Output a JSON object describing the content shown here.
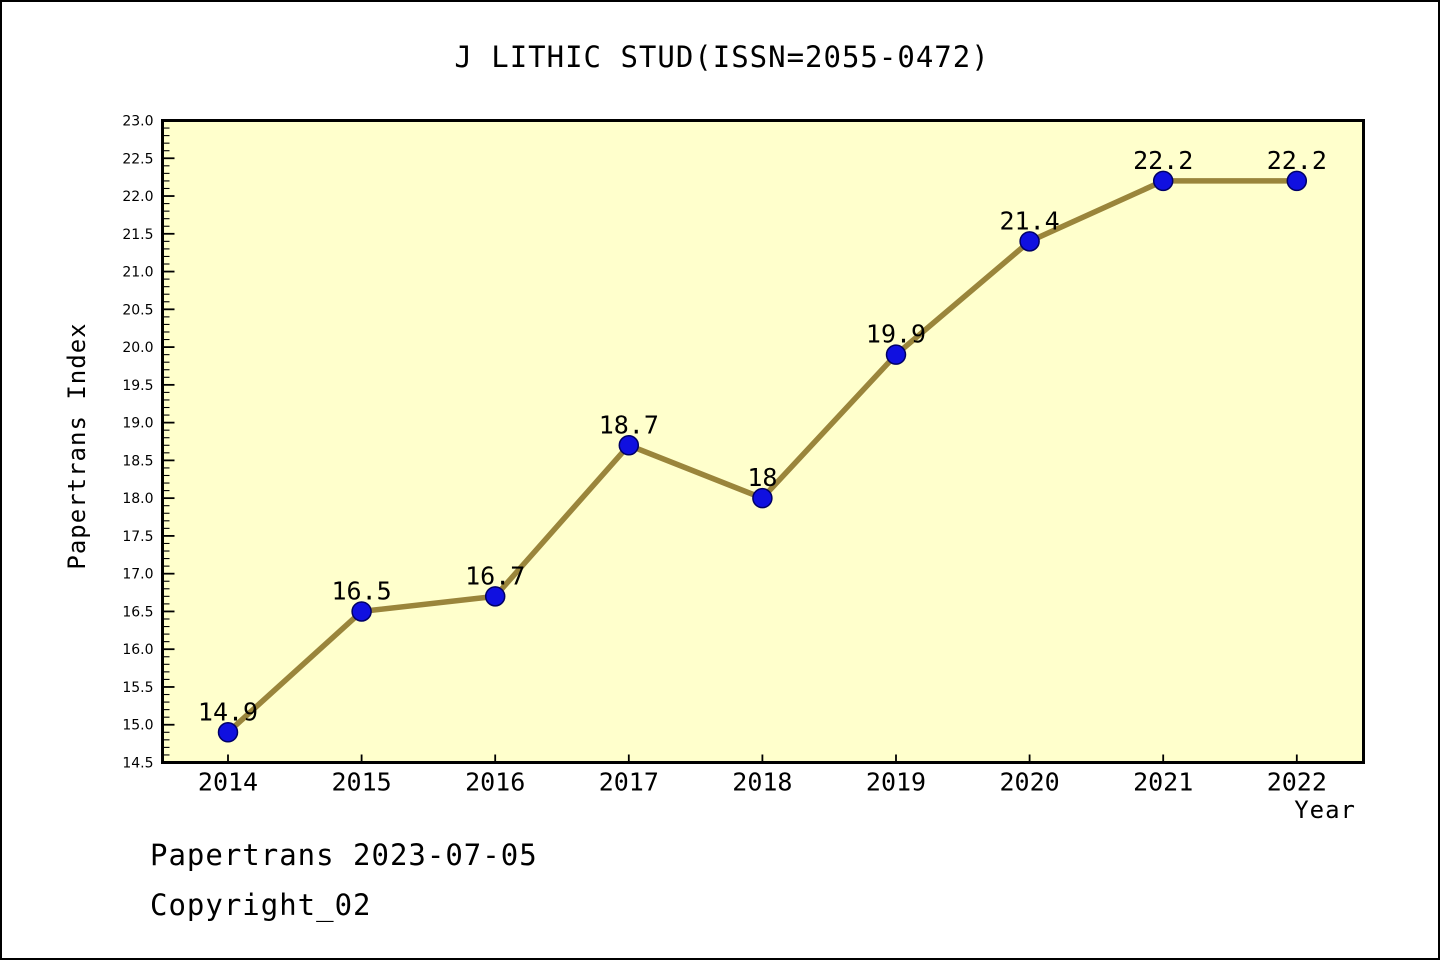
{
  "chart_data": {
    "type": "line",
    "title": "J LITHIC STUD(ISSN=2055-0472)",
    "xlabel": "Year",
    "ylabel": "Papertrans Index",
    "categories": [
      "2014",
      "2015",
      "2016",
      "2017",
      "2018",
      "2019",
      "2020",
      "2021",
      "2022"
    ],
    "values": [
      14.9,
      16.5,
      16.7,
      18.7,
      18,
      19.9,
      21.4,
      22.2,
      22.2
    ],
    "point_labels": [
      "14.9",
      "16.5",
      "16.7",
      "18.7",
      "18",
      "19.9",
      "21.4",
      "22.2",
      "22.2"
    ],
    "ylim": [
      14.5,
      23.0
    ],
    "y_major_step": 0.5,
    "y_minor_step": 0.1,
    "grid": false,
    "legend": "none",
    "colors": {
      "line": "#9A853B",
      "marker": "#1010E0",
      "marker_edge": "#000066",
      "plot_background": "#FFFFCC",
      "figure_background": "#FFFFFF",
      "axis": "#000000",
      "text": "#000000"
    }
  },
  "footer": {
    "line1": "Papertrans 2023-07-05",
    "line2": "Copyright_02"
  }
}
